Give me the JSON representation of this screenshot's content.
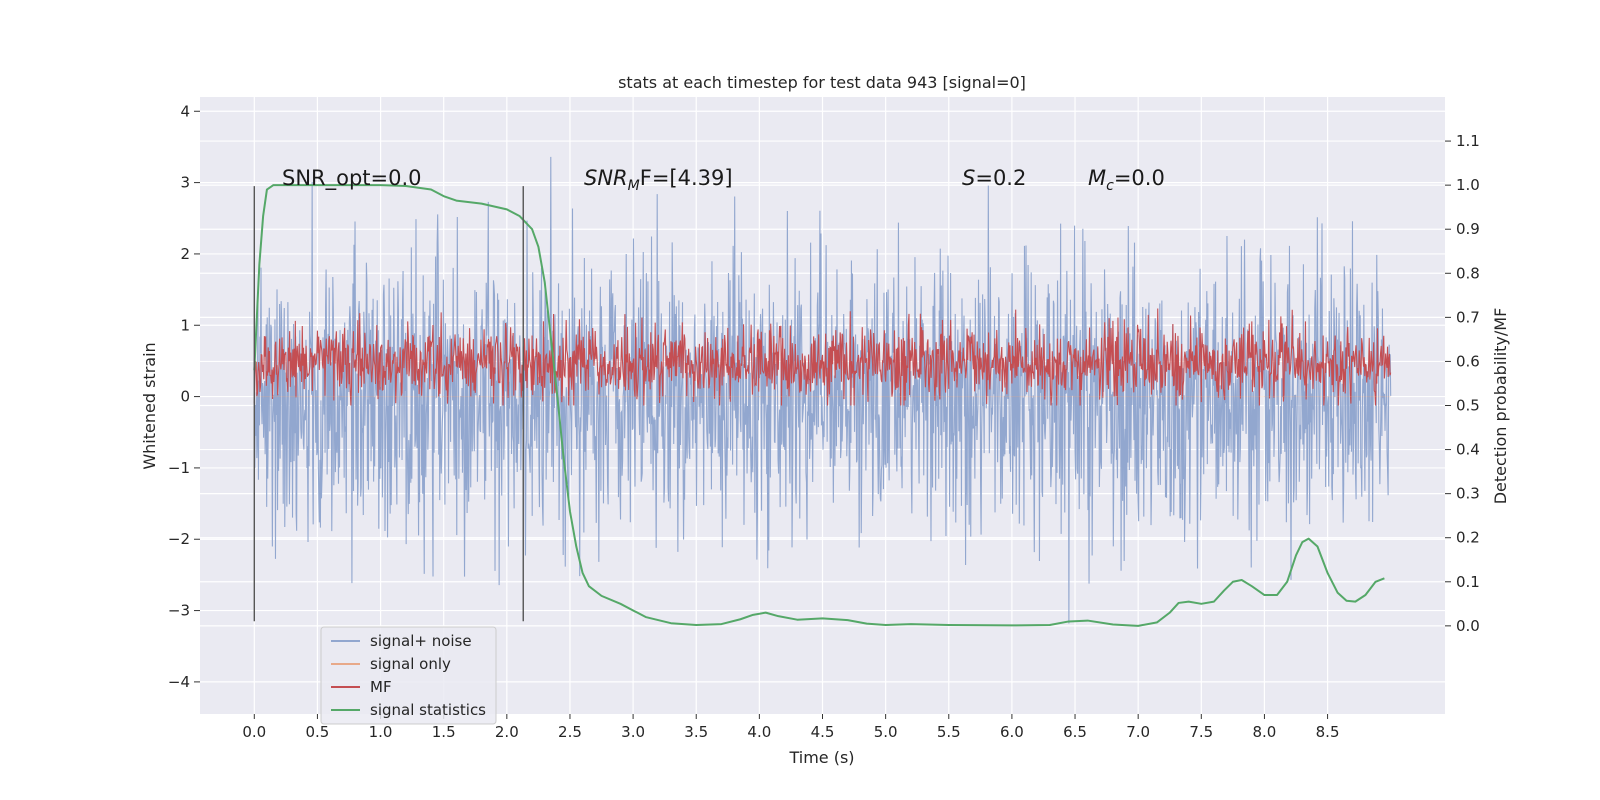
{
  "chart_data": {
    "type": "line",
    "title": "stats at each timestep for test data 943 [signal=0]",
    "xlabel": "Time (s)",
    "ylabel_left": "Whitened strain",
    "ylabel_right": "Detection probability/MF",
    "xlim": [
      -0.43,
      9.43
    ],
    "ylim_left": [
      -4.45,
      4.2
    ],
    "ylim_right": [
      -0.2,
      1.2
    ],
    "x_ticks": [
      "0.0",
      "0.5",
      "1.0",
      "1.5",
      "2.0",
      "2.5",
      "3.0",
      "3.5",
      "4.0",
      "4.5",
      "5.0",
      "5.5",
      "6.0",
      "6.5",
      "7.0",
      "7.5",
      "8.0",
      "8.5"
    ],
    "x_tick_values": [
      0.0,
      0.5,
      1.0,
      1.5,
      2.0,
      2.5,
      3.0,
      3.5,
      4.0,
      4.5,
      5.0,
      5.5,
      6.0,
      6.5,
      7.0,
      7.5,
      8.0,
      8.5
    ],
    "y_ticks_left": [
      "−4",
      "−3",
      "−2",
      "−1",
      "0",
      "1",
      "2",
      "3",
      "4"
    ],
    "y_tick_values_left": [
      -4,
      -3,
      -2,
      -1,
      0,
      1,
      2,
      3,
      4
    ],
    "y_ticks_right": [
      "0.0",
      "0.1",
      "0.2",
      "0.3",
      "0.4",
      "0.5",
      "0.6",
      "0.7",
      "0.8",
      "0.9",
      "1.0",
      "1.1"
    ],
    "y_tick_values_right": [
      0.0,
      0.1,
      0.2,
      0.3,
      0.4,
      0.5,
      0.6,
      0.7,
      0.8,
      0.9,
      1.0,
      1.1
    ],
    "grid": true,
    "legend_position": "lower-left",
    "vertical_markers": [
      {
        "x": 0.0,
        "y_range": [
          -3.15,
          2.95
        ]
      },
      {
        "x": 2.13,
        "y_range": [
          -3.15,
          2.95
        ]
      }
    ],
    "annotations": {
      "snr_opt": "SNR_opt=0.0",
      "snr_mf_main": "SNR",
      "snr_mf_sub": "M",
      "snr_mf_rest": "F=[4.39]",
      "s_main": "S",
      "s_rest": "=0.2",
      "mc_main": "M",
      "mc_sub": "c",
      "mc_rest": "=0.0"
    },
    "series": [
      {
        "name": "signal+ noise",
        "color": "#92a7cf",
        "axis": "left",
        "x_range": [
          0.0,
          9.0
        ],
        "envelope_typical": [
          -1.6,
          1.7
        ],
        "envelope_extreme": [
          -4.0,
          3.85
        ]
      },
      {
        "name": "signal only",
        "color": "#e8a989",
        "axis": "left",
        "x_range": [
          0.0,
          9.0
        ],
        "values_constant": 0.0
      },
      {
        "name": "MF",
        "color": "#c44e52",
        "axis": "right",
        "x_range": [
          0.0,
          9.0
        ],
        "band": [
          0.52,
          0.67
        ],
        "extreme": [
          0.5,
          0.72
        ]
      },
      {
        "name": "signal statistics",
        "color": "#55a868",
        "axis": "right",
        "x": [
          0.0,
          0.04,
          0.07,
          0.1,
          0.15,
          0.25,
          0.5,
          1.0,
          1.2,
          1.4,
          1.5,
          1.6,
          1.8,
          2.0,
          2.1,
          2.2,
          2.25,
          2.3,
          2.35,
          2.4,
          2.45,
          2.5,
          2.55,
          2.6,
          2.65,
          2.75,
          2.9,
          3.1,
          3.3,
          3.5,
          3.7,
          3.85,
          3.95,
          4.05,
          4.15,
          4.3,
          4.5,
          4.7,
          4.85,
          5.0,
          5.2,
          5.5,
          6.0,
          6.3,
          6.45,
          6.6,
          6.8,
          7.0,
          7.15,
          7.25,
          7.32,
          7.4,
          7.5,
          7.6,
          7.68,
          7.75,
          7.82,
          7.9,
          8.0,
          8.1,
          8.18,
          8.25,
          8.3,
          8.35,
          8.42,
          8.5,
          8.58,
          8.65,
          8.72,
          8.8,
          8.88,
          8.95
        ],
        "y": [
          0.58,
          0.82,
          0.93,
          0.99,
          1.0,
          1.0,
          1.0,
          1.0,
          0.998,
          0.99,
          0.975,
          0.965,
          0.958,
          0.945,
          0.93,
          0.9,
          0.86,
          0.78,
          0.65,
          0.52,
          0.38,
          0.26,
          0.18,
          0.12,
          0.09,
          0.068,
          0.05,
          0.02,
          0.006,
          0.002,
          0.004,
          0.015,
          0.025,
          0.03,
          0.022,
          0.014,
          0.017,
          0.013,
          0.005,
          0.002,
          0.004,
          0.002,
          0.001,
          0.002,
          0.01,
          0.012,
          0.003,
          0.0,
          0.008,
          0.03,
          0.052,
          0.055,
          0.05,
          0.055,
          0.08,
          0.1,
          0.104,
          0.09,
          0.07,
          0.07,
          0.1,
          0.16,
          0.19,
          0.198,
          0.18,
          0.12,
          0.075,
          0.057,
          0.055,
          0.07,
          0.1,
          0.108
        ]
      }
    ]
  }
}
